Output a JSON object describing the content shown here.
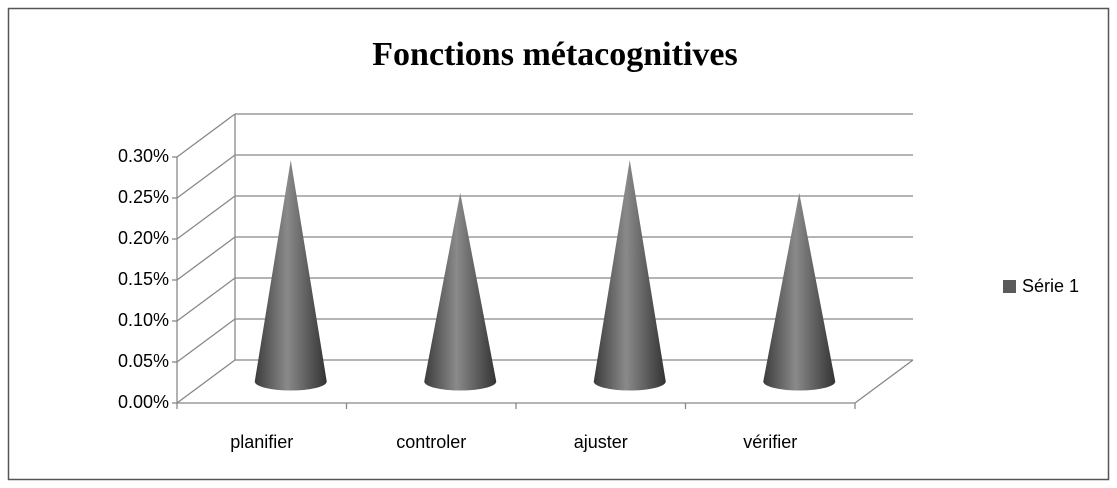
{
  "chart_data": {
    "type": "cone",
    "title": "Fonctions métacognitives",
    "categories": [
      "planifier",
      "controler",
      "ajuster",
      "vérifier"
    ],
    "series": [
      {
        "name": "Série 1",
        "color": "#5a5a5a",
        "values": [
          0.27,
          0.23,
          0.27,
          0.23
        ]
      }
    ],
    "ylim": [
      0,
      0.3
    ],
    "yticks": [
      {
        "value": 0,
        "label": "0.00%"
      },
      {
        "value": 0.05,
        "label": "0.05%"
      },
      {
        "value": 0.1,
        "label": "0.10%"
      },
      {
        "value": 0.15,
        "label": "0.15%"
      },
      {
        "value": 0.2,
        "label": "0.20%"
      },
      {
        "value": 0.25,
        "label": "0.25%"
      },
      {
        "value": 0.3,
        "label": "0.30%"
      }
    ],
    "grid": true,
    "legend": "right"
  }
}
